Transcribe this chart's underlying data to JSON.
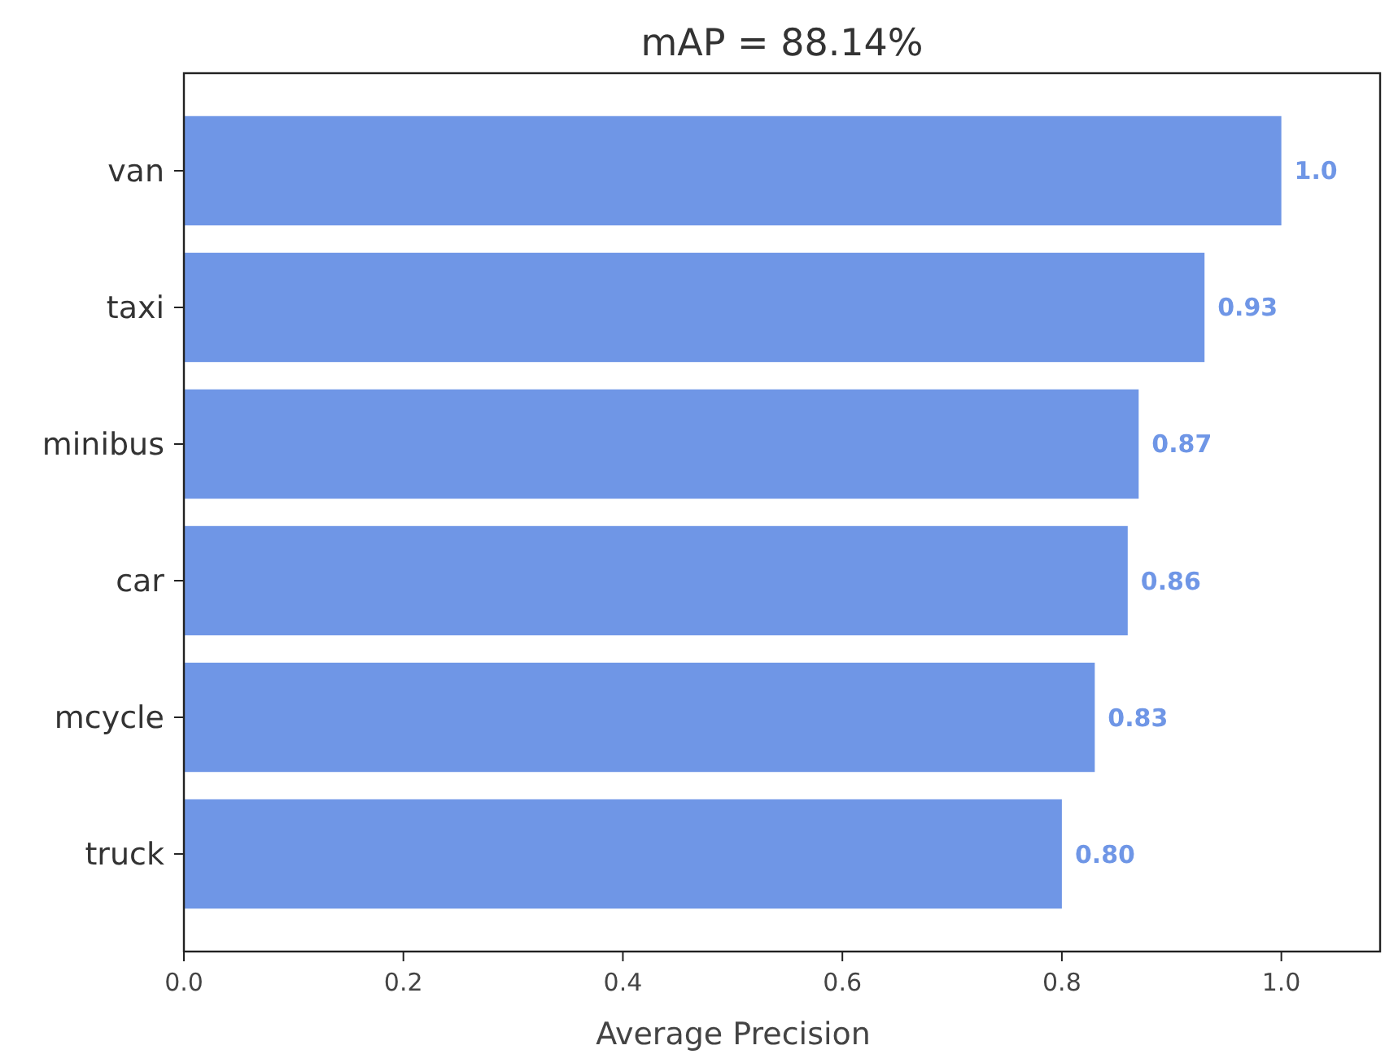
{
  "chart_data": {
    "type": "bar",
    "orientation": "horizontal",
    "title": "mAP = 88.14%",
    "xlabel": "Average Precision",
    "categories": [
      "van",
      "taxi",
      "minibus",
      "car",
      "mcycle",
      "truck"
    ],
    "values": [
      1.0,
      0.93,
      0.87,
      0.86,
      0.83,
      0.8
    ],
    "value_labels": [
      "1.0",
      "0.93",
      "0.87",
      "0.86",
      "0.83",
      "0.80"
    ],
    "color": "#6f96e6",
    "xlim": [
      0,
      1.09
    ],
    "xticks": [
      {
        "value": 0,
        "label": "0.0"
      },
      {
        "value": 0.2,
        "label": "0.2"
      },
      {
        "value": 0.4,
        "label": "0.4"
      },
      {
        "value": 0.6,
        "label": "0.6"
      },
      {
        "value": 0.8,
        "label": "0.8"
      },
      {
        "value": 1,
        "label": "1.0"
      }
    ],
    "grid": false
  }
}
